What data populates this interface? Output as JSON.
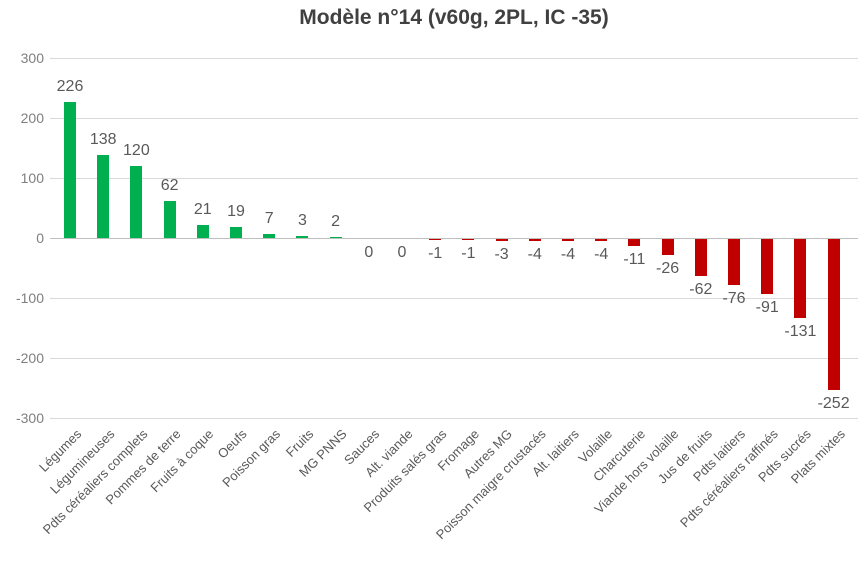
{
  "title": "Modèle n°14 (v60g, 2PL, IC -35)",
  "chart_data": {
    "type": "bar",
    "title": "Modèle n°14 (v60g, 2PL, IC -35)",
    "categories": [
      "Légumes",
      "Légumineuses",
      "Pdts céréaliers complets",
      "Pommes de terre",
      "Fruits à coque",
      "Oeufs",
      "Poisson gras",
      "Fruits",
      "MG PNNS",
      "Sauces",
      "Alt. viande",
      "Produits salés gras",
      "Fromage",
      "Autres MG",
      "Poisson maigre crustacés",
      "Alt. laitiers",
      "Volaille",
      "Charcuterie",
      "Viande hors volaille",
      "Jus de fruits",
      "Pdts laitiers",
      "Pdts céréaliers raffinés",
      "Pdts sucrés",
      "Plats mixtes"
    ],
    "values": [
      226,
      138,
      120,
      62,
      21,
      19,
      7,
      3,
      2,
      0,
      0,
      -1,
      -1,
      -3,
      -4,
      -4,
      -4,
      -11,
      -26,
      -62,
      -76,
      -91,
      -131,
      -252
    ],
    "xlabel": "",
    "ylabel": "",
    "ylim": [
      -300,
      300
    ],
    "ytick_interval": 100,
    "grid": true,
    "legend": false,
    "data_labels": true,
    "colors": {
      "positive_bar": "#00B050",
      "negative_bar": "#C00000",
      "gridline": "#d9d9d9",
      "zero_line": "#bfbfbf",
      "title_text": "#404040",
      "value_label_text": "#595959",
      "axis_tick_text": "#7f7f7f",
      "category_label_text": "#595959",
      "background": "#ffffff"
    }
  }
}
